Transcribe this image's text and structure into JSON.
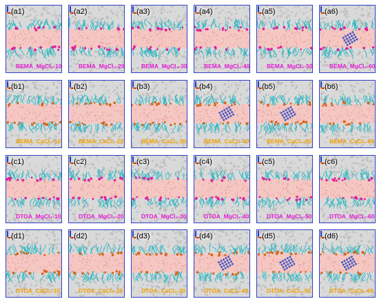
{
  "colors": {
    "frame": "#2f3fc8",
    "water": "#d9d9d9",
    "water_bead": "#bdbdbd",
    "lipid_chain": "#2bb6c2",
    "oil_core": "#f5c7c2",
    "oil_dot": "#e88f8f",
    "mg_ion": "#e0209a",
    "ca_ion": "#d9661a",
    "cluster": "#3c59c8",
    "caption_mg": "#e21cd0",
    "caption_ca": "#f0a000",
    "axis_x": "#d02020",
    "axis_y": "#2040c0",
    "axis_z": "#f0b000"
  },
  "rows": [
    {
      "ion": "Mg",
      "panels": [
        {
          "tag": "(a1)",
          "caption": "BEMA_MgCl₂-10",
          "cluster": 0
        },
        {
          "tag": "(a2)",
          "caption": "BEMA_MgCl₂-20",
          "cluster": 0
        },
        {
          "tag": "(a3)",
          "caption": "BEMA_MgCl₂-30",
          "cluster": 0
        },
        {
          "tag": "(a4)",
          "caption": "BEMA_MgCl₂-40",
          "cluster": 0
        },
        {
          "tag": "(a5)",
          "caption": "BEMA_MgCl₂-50",
          "cluster": 0
        },
        {
          "tag": "(a6)",
          "caption": "BEMA_MgCl₂-60",
          "cluster": 1
        }
      ]
    },
    {
      "ion": "Ca",
      "panels": [
        {
          "tag": "(b1)",
          "caption": "BEMA_CaCl₂-10",
          "cluster": 0
        },
        {
          "tag": "(b2)",
          "caption": "BEMA_CaCl₂-20",
          "cluster": 0
        },
        {
          "tag": "(b3)",
          "caption": "BEMA_CaCl₂-30",
          "cluster": 0
        },
        {
          "tag": "(b4)",
          "caption": "BEMA_CaCl₂-40",
          "cluster": 1
        },
        {
          "tag": "(b5)",
          "caption": "BEMA_CaCl₂-50",
          "cluster": 1
        },
        {
          "tag": "(b6)",
          "caption": "BEMA_CaCl₂-60",
          "cluster": 0
        }
      ]
    },
    {
      "ion": "Mg",
      "panels": [
        {
          "tag": "(c1)",
          "caption": "DTOA_MgCl₂-10",
          "cluster": 0
        },
        {
          "tag": "(c2)",
          "caption": "DTOA_MgCl₂-20",
          "cluster": 0
        },
        {
          "tag": "(c3)",
          "caption": "DTOA_MgCl₂-30",
          "cluster": 0
        },
        {
          "tag": "(c4)",
          "caption": "DTOA_MgCl₂-40",
          "cluster": 0
        },
        {
          "tag": "(c5)",
          "caption": "DTOA_MgCl₂-50",
          "cluster": 0
        },
        {
          "tag": "(c6)",
          "caption": "DTOA_MgCl₂-60",
          "cluster": 0
        }
      ]
    },
    {
      "ion": "Ca",
      "panels": [
        {
          "tag": "(d1)",
          "caption": "DTOA_CaCl₂-10",
          "cluster": 0
        },
        {
          "tag": "(d2)",
          "caption": "DTOA_CaCl₂-20",
          "cluster": 0
        },
        {
          "tag": "(d3)",
          "caption": "DTOA_CaCl₂-30",
          "cluster": 0
        },
        {
          "tag": "(d4)",
          "caption": "DTOA_CaCl₂-40",
          "cluster": 1
        },
        {
          "tag": "(d5)",
          "caption": "DTOA_CaCl₂-50",
          "cluster": 1
        },
        {
          "tag": "(d6)",
          "caption": "DTOA_CaCl₂-60",
          "cluster": 1
        }
      ]
    }
  ]
}
